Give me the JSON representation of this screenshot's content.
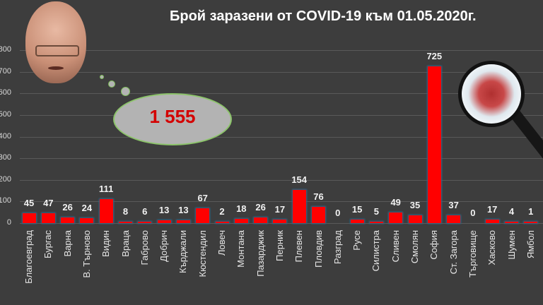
{
  "title": "Брой заразени от COVID-19 към 01.05.2020г.",
  "thought_bubble": {
    "total": "1 555"
  },
  "colors": {
    "background": "#3d3d3d",
    "bar": "#ff0000",
    "bar_outline": "#2c6a8f",
    "bubble_text": "#d40000",
    "bubble_fill": "#b3b3b3"
  },
  "icons": {
    "portrait": "man-portrait",
    "magnifier": "magnifying-glass-virus-icon"
  },
  "y_ticks": [
    "0",
    "100",
    "200",
    "300",
    "400",
    "500",
    "600",
    "700",
    "800"
  ],
  "chart_data": {
    "type": "bar",
    "title": "Брой заразени от COVID-19 към 01.05.2020г.",
    "xlabel": "",
    "ylabel": "",
    "ylim": [
      0,
      800
    ],
    "grid": true,
    "legend": "none",
    "categories": [
      "Благоевград",
      "Бургас",
      "Варна",
      "В. Търново",
      "Видин",
      "Враца",
      "Габрово",
      "Добрич",
      "Кърджали",
      "Кюстендил",
      "Ловеч",
      "Монтана",
      "Пазарджик",
      "Перник",
      "Плевен",
      "Пловдив",
      "Разград",
      "Русе",
      "Силистра",
      "Сливен",
      "Смолян",
      "София",
      "Ст. Загора",
      "Търговище",
      "Хасково",
      "Шумен",
      "Ямбол"
    ],
    "values": [
      45,
      47,
      26,
      24,
      111,
      8,
      6,
      13,
      13,
      67,
      2,
      18,
      26,
      17,
      154,
      76,
      0,
      15,
      5,
      49,
      35,
      725,
      37,
      0,
      17,
      4,
      1
    ],
    "value_labels": [
      "45",
      "47",
      "26",
      "24",
      "111",
      "8",
      "6",
      "13",
      "13",
      "67",
      "2",
      "18",
      "26",
      "17",
      "154",
      "76",
      "0",
      "15",
      "5",
      "49",
      "35",
      "725",
      "37",
      "0",
      "17",
      "4",
      "1"
    ],
    "annotations": [
      "1 555"
    ]
  }
}
